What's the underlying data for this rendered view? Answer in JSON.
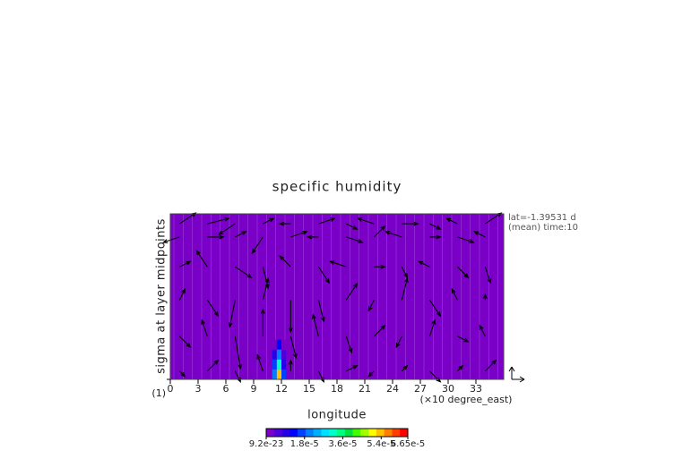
{
  "chart_data": {
    "type": "contour-vector",
    "title": "specific humidity",
    "x_label": "longitude",
    "x_unit": "(×10 degree_east)",
    "y_label": "sigma at layer midpoints",
    "annotations": [
      "lat=-1.39531 d",
      "(mean) time:10"
    ],
    "xlim": [
      0,
      36
    ],
    "xticks": [
      0,
      3,
      6,
      9,
      12,
      15,
      18,
      21,
      24,
      27,
      30,
      33
    ],
    "ylim": [
      1,
      0
    ],
    "yticks": [
      {
        "value": 1,
        "label": "(1)"
      }
    ],
    "field": {
      "x": [
        11.25,
        11.75,
        12.25
      ],
      "y": [
        0.79,
        0.85,
        0.91,
        0.97
      ],
      "values": [
        [
          9.2e-23,
          1.2e-05,
          9.2e-23
        ],
        [
          8e-06,
          2e-05,
          5e-06
        ],
        [
          1.5e-05,
          3e-05,
          1e-05
        ],
        [
          2e-05,
          5.5e-05,
          1.5e-05
        ]
      ]
    },
    "colorbar": {
      "lim": [
        9.2e-23,
        6.65e-05
      ],
      "colors": [
        "#7a00c8",
        "#5000d8",
        "#2800e8",
        "#0000ff",
        "#0040ff",
        "#0080ff",
        "#00b0ff",
        "#00e0ff",
        "#00ffc8",
        "#00ff80",
        "#00e040",
        "#40ff00",
        "#a0ff00",
        "#ffff00",
        "#ffc000",
        "#ff8000",
        "#ff4000",
        "#ff0000"
      ],
      "ticks": [
        {
          "value": 9.2e-23,
          "label": "9.2e-23"
        },
        {
          "value": 1.8e-05,
          "label": "1.8e-5"
        },
        {
          "value": 3.6e-05,
          "label": "3.6e-5"
        },
        {
          "value": 5.4e-05,
          "label": "5.4e-5"
        },
        {
          "value": 6.65e-05,
          "label": "6.65e-5"
        }
      ]
    },
    "vectors": {
      "x": [
        1,
        4,
        7,
        10,
        13,
        16,
        19,
        22,
        25,
        28,
        31,
        34
      ],
      "y": [
        0.06,
        0.14,
        0.32,
        0.52,
        0.74,
        0.95
      ],
      "u": [
        [
          3,
          4,
          -3,
          2,
          -2,
          3,
          2,
          -3,
          3,
          2,
          -2,
          3
        ],
        [
          -3,
          3,
          2,
          -2,
          3,
          -2,
          3,
          2,
          -3,
          2,
          3,
          -2
        ],
        [
          2,
          -2,
          3,
          1,
          -2,
          2,
          -3,
          2,
          1,
          -2,
          2,
          1
        ],
        [
          1,
          2,
          -1,
          1,
          0,
          1,
          2,
          -1,
          1,
          2,
          -1,
          0
        ],
        [
          2,
          -1,
          1,
          0,
          1,
          -1,
          1,
          2,
          -1,
          1,
          2,
          -1
        ],
        [
          1,
          2,
          1,
          -1,
          0,
          1,
          2,
          -1,
          1,
          2,
          1,
          2
        ]
      ],
      "v": [
        [
          2,
          1,
          -2,
          1,
          0,
          1,
          -1,
          1,
          0,
          -1,
          1,
          2
        ],
        [
          -1,
          0,
          1,
          -3,
          1,
          0,
          -1,
          2,
          1,
          0,
          -1,
          1
        ],
        [
          1,
          3,
          -2,
          -4,
          2,
          -3,
          1,
          0,
          -2,
          1,
          -2,
          -3
        ],
        [
          2,
          -3,
          -5,
          4,
          -6,
          -4,
          3,
          -2,
          4,
          -3,
          2,
          1
        ],
        [
          -2,
          3,
          -6,
          5,
          -4,
          4,
          -3,
          2,
          -2,
          3,
          -1,
          2
        ],
        [
          -1,
          2,
          -2,
          3,
          2,
          -2,
          1,
          -1,
          1,
          -2,
          1,
          2
        ]
      ]
    }
  }
}
